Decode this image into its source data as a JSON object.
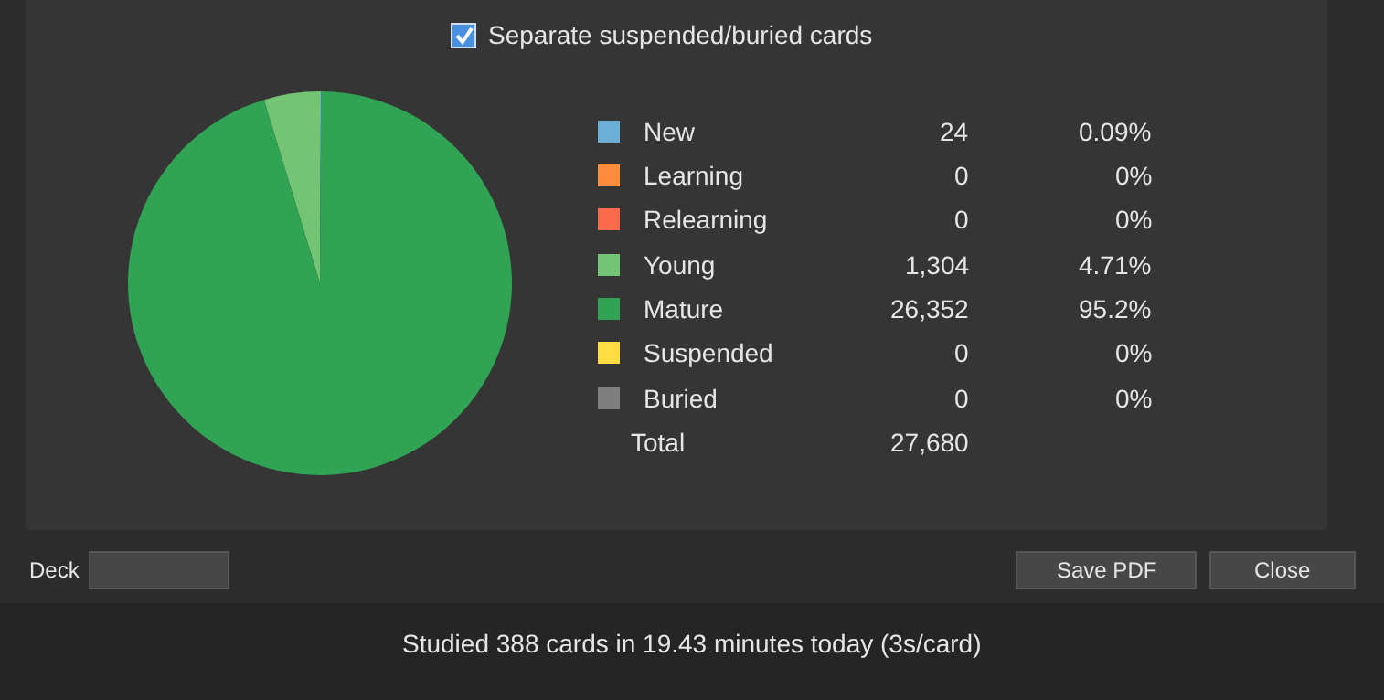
{
  "chart_data": {
    "type": "pie",
    "categories": [
      "New",
      "Learning",
      "Relearning",
      "Young",
      "Mature",
      "Suspended",
      "Buried"
    ],
    "values": [
      24,
      0,
      0,
      1304,
      26352,
      0,
      0
    ],
    "value_labels": [
      "24",
      "0",
      "0",
      "1,304",
      "26,352",
      "0",
      "0"
    ],
    "colors": [
      "#6baed6",
      "#fd8d3c",
      "#fb6a4a",
      "#74c476",
      "#31a354",
      "#ffdc41",
      "#7f7f7f"
    ],
    "totals": [
      "27,680"
    ],
    "legend": "right",
    "annotations": [
      "Separate suspended/buried cards",
      "Deck",
      "Save PDF",
      "Close",
      "Studied 388 cards in 19.43 minutes today (3s/card)",
      "0.09%",
      "0%",
      "0%",
      "4.71%",
      "95.2%",
      "0%",
      "0%",
      "Total"
    ]
  }
}
